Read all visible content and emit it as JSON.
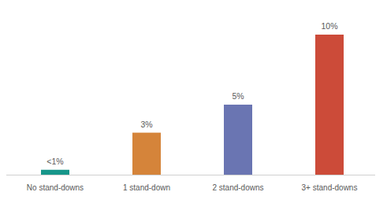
{
  "chart_data": {
    "type": "bar",
    "categories": [
      "No stand-downs",
      "1 stand-down",
      "2 stand-downs",
      "3+ stand-downs"
    ],
    "values": [
      0.35,
      3,
      5,
      10
    ],
    "value_labels": [
      "<1%",
      "3%",
      "5%",
      "10%"
    ],
    "colors": [
      "#17968a",
      "#d5843a",
      "#6a75b2",
      "#cc4b39"
    ],
    "ylim": [
      0,
      10
    ],
    "data_labels": true,
    "tick_labels": "x"
  }
}
